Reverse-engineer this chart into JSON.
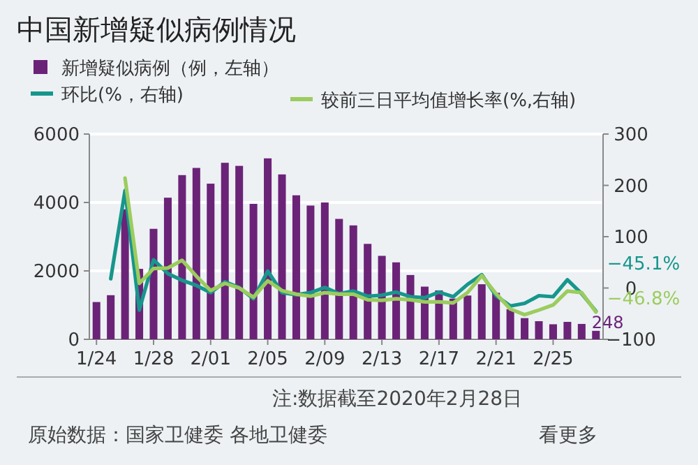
{
  "chart_data": {
    "type": "bar",
    "title": "中国新增疑似病例情况",
    "categories": [
      "1/24",
      null,
      null,
      null,
      "1/28",
      null,
      null,
      null,
      "2/01",
      null,
      null,
      null,
      "2/05",
      null,
      null,
      null,
      "2/09",
      null,
      null,
      null,
      "2/13",
      null,
      null,
      null,
      "2/17",
      null,
      null,
      null,
      "2/21",
      null,
      null,
      null,
      "2/25",
      null,
      null,
      null
    ],
    "series": [
      {
        "name": "新增疑似病例（例，左轴）",
        "color": "#6b2378",
        "values": [
          1090,
          1290,
          3800,
          2060,
          3230,
          4140,
          4800,
          5010,
          4550,
          5160,
          5070,
          3960,
          5290,
          4820,
          4210,
          3910,
          4000,
          3520,
          3330,
          2790,
          2440,
          2250,
          1880,
          1540,
          1430,
          1190,
          1280,
          1610,
          1360,
          880,
          620,
          530,
          440,
          510,
          450,
          248
        ],
        "value_labels": [
          null,
          null,
          null,
          null,
          null,
          null,
          null,
          null,
          null,
          null,
          null,
          null,
          null,
          null,
          null,
          null,
          null,
          null,
          null,
          null,
          null,
          null,
          null,
          null,
          null,
          null,
          null,
          null,
          null,
          null,
          null,
          null,
          null,
          null,
          null,
          "248"
        ]
      },
      {
        "name": "环比(%，右轴)",
        "type": "line",
        "axis": "y2",
        "color": "#17968c",
        "values": [
          null,
          18,
          190,
          -43,
          55,
          28,
          15,
          5,
          -9,
          12,
          1,
          -21,
          33,
          -9,
          -13,
          -9,
          1,
          -11,
          -6,
          -16,
          -14,
          -8,
          -17,
          -19,
          -8,
          -17,
          7,
          26,
          -15,
          -35,
          -30,
          -15,
          -17,
          16,
          -11,
          -45.1
        ],
        "value_labels": [
          null,
          null,
          null,
          null,
          null,
          null,
          null,
          null,
          null,
          null,
          null,
          null,
          null,
          null,
          null,
          null,
          null,
          null,
          null,
          null,
          null,
          null,
          null,
          null,
          null,
          null,
          null,
          null,
          null,
          null,
          null,
          null,
          null,
          null,
          null,
          "−45.1%"
        ]
      },
      {
        "name": "较前三日平均值增长率(%,右轴)",
        "type": "line",
        "axis": "y2",
        "color": "#9ccc5e",
        "values": [
          null,
          null,
          214,
          9,
          38,
          39,
          54,
          23,
          -5,
          9,
          0,
          -18,
          14,
          -5,
          -12,
          -16,
          -9,
          -12,
          -12,
          -23,
          -24,
          -21,
          -23,
          -27,
          -27,
          -29,
          -9,
          24,
          -11,
          -41,
          -52,
          -43,
          -33,
          -6,
          -9,
          -46.8
        ],
        "value_labels": [
          null,
          null,
          null,
          null,
          null,
          null,
          null,
          null,
          null,
          null,
          null,
          null,
          null,
          null,
          null,
          null,
          null,
          null,
          null,
          null,
          null,
          null,
          null,
          null,
          null,
          null,
          null,
          null,
          null,
          null,
          null,
          null,
          null,
          null,
          null,
          "−46.8%"
        ]
      }
    ],
    "ylim": [
      0,
      6000
    ],
    "yticks": [
      0,
      2000,
      4000,
      6000
    ],
    "y2lim": [
      -100,
      300
    ],
    "y2ticks": [
      -100,
      0,
      100,
      200,
      300
    ],
    "grid": "y",
    "legend": "top",
    "annotations": [
      "注:数据截至2020年2月28日",
      "原始数据：国家卫健委 各地卫健委",
      "看更多"
    ]
  }
}
